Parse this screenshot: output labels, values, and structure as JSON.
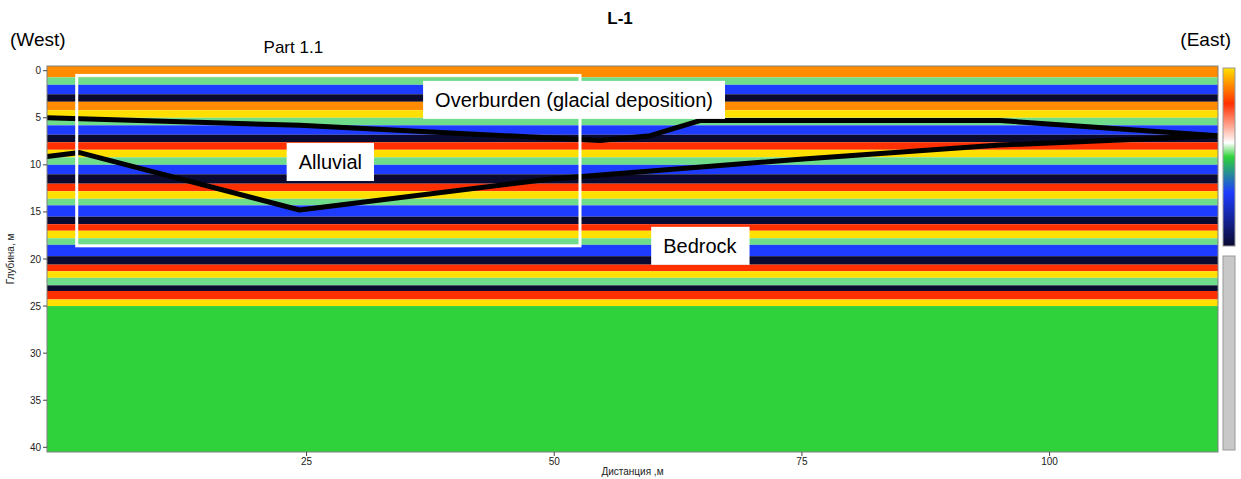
{
  "chart_data": {
    "type": "radargram",
    "title": "L-1",
    "subtitle_left": "(West)",
    "subtitle_right": "(East)",
    "x_label": "Дистанция ,м",
    "y_label": "Глубина, м",
    "xlim": [
      -1.2,
      117
    ],
    "ylim": [
      -0.5,
      40.5
    ],
    "xticks": [
      25,
      50,
      75,
      100
    ],
    "yticks": [
      0,
      5,
      10,
      15,
      20,
      25,
      30,
      35,
      40
    ],
    "layers": {
      "top": [
        -0.5,
        0.7,
        1.5,
        2.5,
        3.3,
        4.2,
        5.0,
        5.8,
        6.8,
        7.6,
        8.4,
        9.2,
        10.0,
        11.0,
        12.0,
        12.8,
        13.6,
        14.3,
        15.5,
        16.3,
        17.0,
        17.8,
        18.5,
        19.7,
        20.6,
        21.3,
        22.0,
        22.8,
        23.4,
        24.3,
        25.0
      ],
      "bottom": [
        0.7,
        1.5,
        2.5,
        3.3,
        4.2,
        5.0,
        5.8,
        6.8,
        7.6,
        8.4,
        9.2,
        10.0,
        11.0,
        12.0,
        12.8,
        13.6,
        14.3,
        15.5,
        16.3,
        17.0,
        17.8,
        18.5,
        19.7,
        20.6,
        21.3,
        22.0,
        22.8,
        23.4,
        24.3,
        25.0,
        40.5
      ],
      "colors": [
        "#ff8c00",
        "#6fdc8c",
        "#1e3cff",
        "#0a0a30",
        "#ff8c00",
        "#ffe000",
        "#6fdc8c",
        "#1e3cff",
        "#0a0a30",
        "#ff3000",
        "#ffe000",
        "#6fdc8c",
        "#1e3cff",
        "#0a0a30",
        "#ff3000",
        "#ffe000",
        "#6fdc8c",
        "#1e3cff",
        "#0a0a30",
        "#ff3000",
        "#ffe000",
        "#6fdc8c",
        "#1e3cff",
        "#0a0a30",
        "#ff3000",
        "#ffe000",
        "#6fdc8c",
        "#0a0a30",
        "#ff3000",
        "#ffe000",
        "#2fd23a"
      ]
    },
    "series": [
      {
        "color": "#000000",
        "x": [
          -1.2,
          24.3,
          54.6,
          59.7,
          64.7,
          95.0,
          117
        ],
        "values": [
          5.0,
          5.8,
          7.4,
          6.9,
          5.3,
          5.3,
          6.9
        ]
      },
      {
        "color": "#000000",
        "x": [
          -1.2,
          2.1,
          24.3,
          49.6,
          74.8,
          95.0,
          117
        ],
        "values": [
          9.1,
          8.7,
          14.8,
          11.5,
          9.4,
          7.9,
          6.9
        ]
      }
    ],
    "region": {
      "label": "Part 1.1",
      "x": [
        1.8,
        52.6
      ],
      "y": [
        0.5,
        18.6
      ]
    },
    "annotations": [
      {
        "text": "Overburden (glacial deposition)",
        "x": 52,
        "y": 3.1
      },
      {
        "text": "Alluvial",
        "x": 27.4,
        "y": 9.7
      },
      {
        "text": "Bedrock",
        "x": 64.7,
        "y": 18.6
      }
    ]
  }
}
